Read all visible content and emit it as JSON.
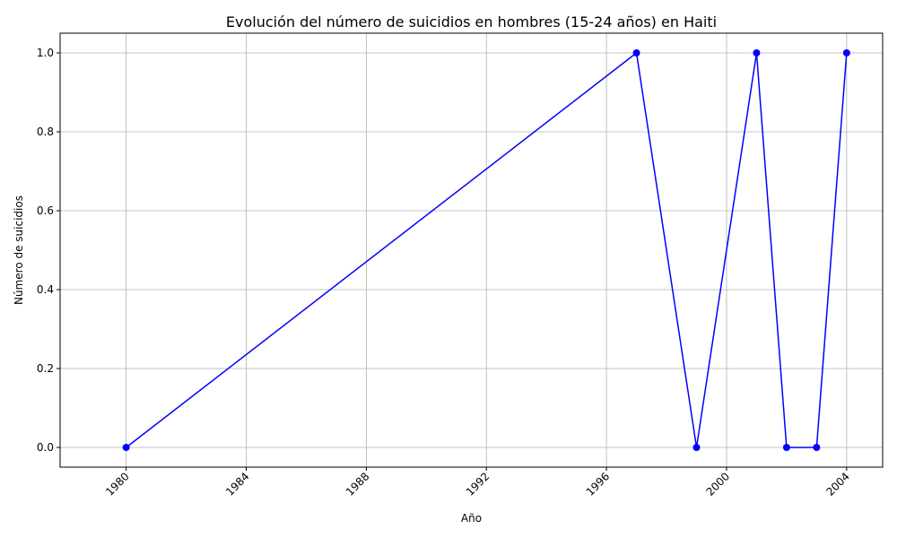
{
  "chart_data": {
    "type": "line",
    "title": "Evolución del número de suicidios en hombres (15-24 años) en Haiti",
    "xlabel": "Año",
    "ylabel": "Número de suicidios",
    "x": [
      1980,
      1997,
      1999,
      2001,
      2002,
      2003,
      2004
    ],
    "series": [
      {
        "values": [
          0,
          1,
          0,
          1,
          0,
          0,
          1
        ]
      }
    ],
    "xlim": [
      1977.8,
      2005.2
    ],
    "ylim": [
      -0.05,
      1.05
    ],
    "xticks": [
      1980,
      1984,
      1988,
      1992,
      1996,
      2000,
      2004
    ],
    "xtick_labels": [
      "1980",
      "1984",
      "1988",
      "1992",
      "1996",
      "2000",
      "2004"
    ],
    "yticks": [
      0,
      0.2,
      0.4,
      0.6,
      0.8,
      1
    ],
    "ytick_labels": [
      "0.0",
      "0.2",
      "0.4",
      "0.6",
      "0.8",
      "1.0"
    ],
    "grid": true,
    "line_color": "#0000ff",
    "grid_color": "#b0b0b0",
    "marker": "circle"
  }
}
